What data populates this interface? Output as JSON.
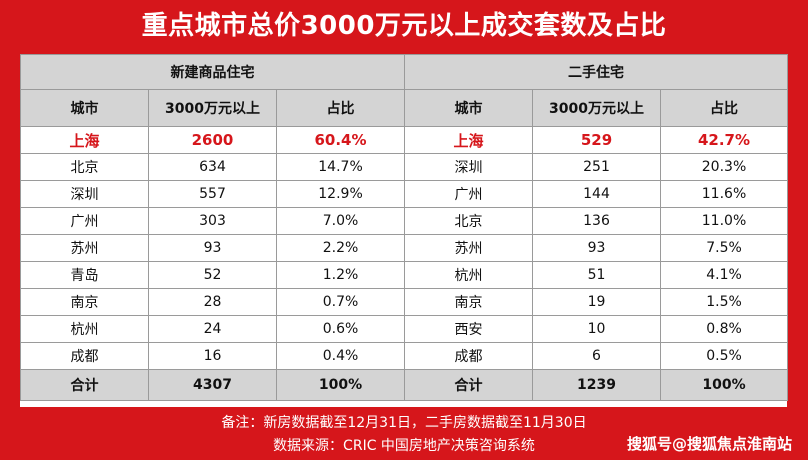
{
  "title": "重点城市总价3000万元以上成交套数及占比",
  "groups": {
    "new": "新建商品住宅",
    "second": "二手住宅"
  },
  "columns": {
    "city": "城市",
    "count": "3000万元以上",
    "share": "占比"
  },
  "rows": [
    {
      "new_city": "上海",
      "new_count": "2600",
      "new_share": "60.4%",
      "sec_city": "上海",
      "sec_count": "529",
      "sec_share": "42.7%"
    },
    {
      "new_city": "北京",
      "new_count": "634",
      "new_share": "14.7%",
      "sec_city": "深圳",
      "sec_count": "251",
      "sec_share": "20.3%"
    },
    {
      "new_city": "深圳",
      "new_count": "557",
      "new_share": "12.9%",
      "sec_city": "广州",
      "sec_count": "144",
      "sec_share": "11.6%"
    },
    {
      "new_city": "广州",
      "new_count": "303",
      "new_share": "7.0%",
      "sec_city": "北京",
      "sec_count": "136",
      "sec_share": "11.0%"
    },
    {
      "new_city": "苏州",
      "new_count": "93",
      "new_share": "2.2%",
      "sec_city": "苏州",
      "sec_count": "93",
      "sec_share": "7.5%"
    },
    {
      "new_city": "青岛",
      "new_count": "52",
      "new_share": "1.2%",
      "sec_city": "杭州",
      "sec_count": "51",
      "sec_share": "4.1%"
    },
    {
      "new_city": "南京",
      "new_count": "28",
      "new_share": "0.7%",
      "sec_city": "南京",
      "sec_count": "19",
      "sec_share": "1.5%"
    },
    {
      "new_city": "杭州",
      "new_count": "24",
      "new_share": "0.6%",
      "sec_city": "西安",
      "sec_count": "10",
      "sec_share": "0.8%"
    },
    {
      "new_city": "成都",
      "new_count": "16",
      "new_share": "0.4%",
      "sec_city": "成都",
      "sec_count": "6",
      "sec_share": "0.5%"
    }
  ],
  "total": {
    "new_label": "合计",
    "new_count": "4307",
    "new_share": "100%",
    "sec_label": "合计",
    "sec_count": "1239",
    "sec_share": "100%"
  },
  "notes": {
    "line1": "备注：新房数据截至12月31日，二手房数据截至11月30日",
    "line2": "数据来源：CRIC 中国房地产决策咨询系统"
  },
  "watermark": "搜狐号@搜狐焦点淮南站",
  "colors": {
    "background": "#d6161b",
    "header_gray": "#d4d4d4",
    "highlight_red": "#d6161b"
  }
}
